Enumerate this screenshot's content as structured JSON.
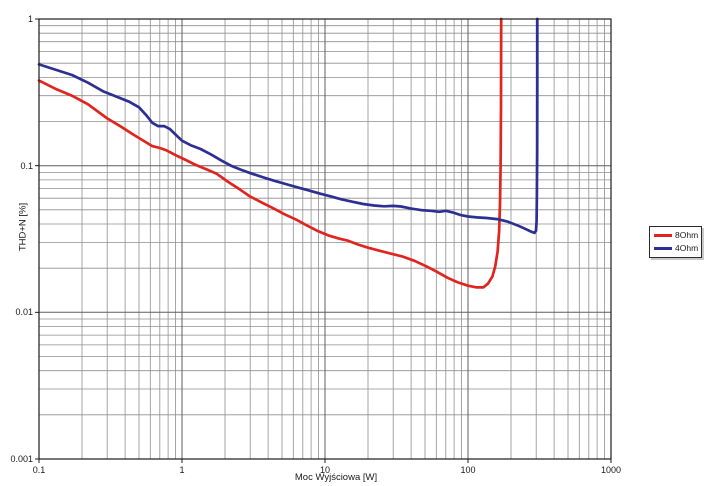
{
  "chart_data": {
    "type": "line",
    "title": "",
    "xlabel": "Moc Wyjściowa [W]",
    "ylabel": "THD+N [%]",
    "x_scale": "log",
    "y_scale": "log",
    "xlim": [
      0.1,
      1000
    ],
    "ylim": [
      0.001,
      1
    ],
    "x_tick_labels": [
      "0.1",
      "1",
      "10",
      "100",
      "1000"
    ],
    "x_tick_values": [
      0.1,
      1,
      10,
      100,
      1000
    ],
    "y_tick_labels": [
      "1",
      "0.1",
      "0.01",
      "0.001"
    ],
    "y_tick_values": [
      1,
      0.1,
      0.01,
      0.001
    ],
    "grid": "log major and minor gridlines on",
    "legend_position": "outside-right",
    "series": [
      {
        "name": "8Ohm",
        "color": "#e0251f",
        "points": [
          [
            0.1,
            0.38
          ],
          [
            0.13,
            0.335
          ],
          [
            0.17,
            0.3
          ],
          [
            0.22,
            0.262
          ],
          [
            0.3,
            0.21
          ],
          [
            0.38,
            0.183
          ],
          [
            0.46,
            0.162
          ],
          [
            0.55,
            0.146
          ],
          [
            0.62,
            0.136
          ],
          [
            0.7,
            0.132
          ],
          [
            0.78,
            0.127
          ],
          [
            0.9,
            0.118
          ],
          [
            1.05,
            0.11
          ],
          [
            1.25,
            0.101
          ],
          [
            1.5,
            0.094
          ],
          [
            1.75,
            0.088
          ],
          [
            2.1,
            0.0775
          ],
          [
            2.5,
            0.0695
          ],
          [
            3.0,
            0.0615
          ],
          [
            3.6,
            0.0562
          ],
          [
            4.3,
            0.0515
          ],
          [
            5.2,
            0.0467
          ],
          [
            6.3,
            0.0428
          ],
          [
            7.5,
            0.039
          ],
          [
            8.8,
            0.036
          ],
          [
            10.5,
            0.0335
          ],
          [
            12.5,
            0.0318
          ],
          [
            14.5,
            0.0308
          ],
          [
            17,
            0.029
          ],
          [
            20,
            0.0276
          ],
          [
            24,
            0.0263
          ],
          [
            29,
            0.0251
          ],
          [
            35,
            0.024
          ],
          [
            42,
            0.0225
          ],
          [
            50,
            0.0208
          ],
          [
            60,
            0.019
          ],
          [
            72,
            0.0172
          ],
          [
            85,
            0.016
          ],
          [
            100,
            0.0152
          ],
          [
            115,
            0.0148
          ],
          [
            128,
            0.0148
          ],
          [
            138,
            0.0157
          ],
          [
            148,
            0.0175
          ],
          [
            155,
            0.0205
          ],
          [
            161,
            0.026
          ],
          [
            165,
            0.0355
          ],
          [
            167.5,
            0.055
          ],
          [
            169,
            0.1
          ],
          [
            170,
            0.25
          ],
          [
            170.5,
            0.6
          ],
          [
            170.8,
            1.0
          ]
        ]
      },
      {
        "name": "4Ohm",
        "color": "#2d3092",
        "points": [
          [
            0.1,
            0.49
          ],
          [
            0.13,
            0.452
          ],
          [
            0.17,
            0.415
          ],
          [
            0.22,
            0.368
          ],
          [
            0.28,
            0.322
          ],
          [
            0.35,
            0.295
          ],
          [
            0.43,
            0.272
          ],
          [
            0.5,
            0.25
          ],
          [
            0.56,
            0.222
          ],
          [
            0.62,
            0.196
          ],
          [
            0.68,
            0.186
          ],
          [
            0.75,
            0.186
          ],
          [
            0.82,
            0.178
          ],
          [
            0.9,
            0.163
          ],
          [
            1.0,
            0.148
          ],
          [
            1.15,
            0.138
          ],
          [
            1.35,
            0.13
          ],
          [
            1.6,
            0.119
          ],
          [
            1.9,
            0.108
          ],
          [
            2.2,
            0.1
          ],
          [
            2.6,
            0.0935
          ],
          [
            3.1,
            0.088
          ],
          [
            3.7,
            0.0832
          ],
          [
            4.4,
            0.079
          ],
          [
            5.3,
            0.075
          ],
          [
            6.4,
            0.0712
          ],
          [
            7.7,
            0.0678
          ],
          [
            9.2,
            0.0645
          ],
          [
            11,
            0.0617
          ],
          [
            13,
            0.059
          ],
          [
            15.5,
            0.0568
          ],
          [
            18.5,
            0.0548
          ],
          [
            22,
            0.0535
          ],
          [
            26,
            0.0528
          ],
          [
            30,
            0.0532
          ],
          [
            34,
            0.0527
          ],
          [
            40,
            0.051
          ],
          [
            47,
            0.0498
          ],
          [
            55,
            0.0492
          ],
          [
            63,
            0.0485
          ],
          [
            70,
            0.0492
          ],
          [
            78,
            0.048
          ],
          [
            88,
            0.0462
          ],
          [
            100,
            0.045
          ],
          [
            115,
            0.0444
          ],
          [
            135,
            0.044
          ],
          [
            160,
            0.0432
          ],
          [
            190,
            0.0415
          ],
          [
            220,
            0.0393
          ],
          [
            250,
            0.0372
          ],
          [
            275,
            0.0356
          ],
          [
            292,
            0.0348
          ],
          [
            299,
            0.036
          ],
          [
            302,
            0.042
          ],
          [
            303.5,
            0.065
          ],
          [
            304.5,
            0.13
          ],
          [
            305,
            0.35
          ],
          [
            305.3,
            1.0
          ]
        ]
      }
    ]
  },
  "colors": {
    "grid_minor": "#8f8f8f",
    "grid_major": "#5f5f5f",
    "plot_border": "#1c1c1c",
    "tick": "#1c1c1c",
    "background": "#ffffff"
  }
}
